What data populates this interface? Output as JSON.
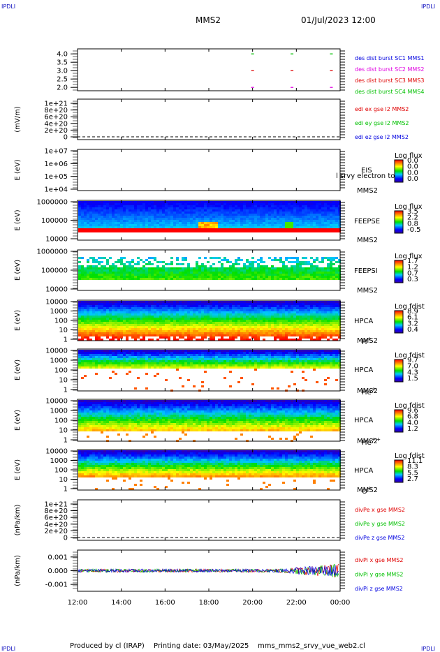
{
  "header": {
    "corner_tl": "IPDLI",
    "corner_tr": "IPDLI",
    "corner_bl": "IPDLI",
    "corner_br": "IPDLI",
    "spacecraft": "MMS2",
    "datetime": "01/Jul/2023 12:00"
  },
  "footer": {
    "produced": "Produced by cl (IRAP)",
    "printing": "Printing date: 03/May/2025",
    "script": "mms_mms2_srvy_vue_web2.cl"
  },
  "colors": {
    "black": "#000000",
    "red": "#e00000",
    "green": "#00c000",
    "blue": "#0000e0",
    "magenta": "#e000e0"
  },
  "chart_data": [
    {
      "type": "scatter",
      "panel": "des dist burst",
      "ylim": [
        1.8,
        4.3
      ],
      "yticks": [
        "4.0",
        "3.5",
        "3.0",
        "2.5",
        "2.0"
      ],
      "series": [
        {
          "name": "des dist burst SC1 MMS1",
          "color": "#0000e0",
          "x": [],
          "y": []
        },
        {
          "name": "des dist burst SC2 MMS2",
          "color": "#e000e0",
          "x": [
            20.0,
            21.8,
            23.6
          ],
          "y": [
            2.0,
            2.0,
            2.0
          ]
        },
        {
          "name": "des dist burst SC3 MMS3",
          "color": "#e00000",
          "x": [
            20.0,
            21.8,
            23.6
          ],
          "y": [
            3.0,
            3.0,
            3.0
          ]
        },
        {
          "name": "des dist burst SC4 MMS4",
          "color": "#00c000",
          "x": [
            20.0,
            21.8,
            23.6
          ],
          "y": [
            4.0,
            4.0,
            4.0
          ]
        }
      ]
    },
    {
      "type": "line",
      "panel": "edi e gse",
      "ylabel": "(mV/m)",
      "yticks": [
        "1e+21",
        "8e+20",
        "6e+20",
        "4e+20",
        "2e+20",
        "0"
      ],
      "series": [
        {
          "name": "edi ex gse l2 MMS2",
          "color": "#e00000"
        },
        {
          "name": "edi ey gse l2 MMS2",
          "color": "#00c000"
        },
        {
          "name": "edi ez gse l2 MMS2",
          "color": "#0000e0"
        }
      ]
    },
    {
      "type": "heatmap",
      "panel": "EIS",
      "ylabel": "E (eV)",
      "yticks": [
        "1e+07",
        "1e+06",
        "1e+05",
        "1e+04"
      ],
      "labels": [
        "EIS",
        "MMS2"
      ],
      "overlay_text": "l srvy electron to",
      "colorbar": {
        "title": "Log flux",
        "ticks": [
          "0.0",
          "0.0",
          "0.0",
          "0.0"
        ]
      },
      "empty": true
    },
    {
      "type": "heatmap",
      "panel": "FEEPS electron",
      "ylabel": "E (eV)",
      "yticks": [
        "1000000",
        "100000",
        "10000"
      ],
      "labels": [
        "FEEPSE",
        "MMS2"
      ],
      "colorbar": {
        "title": "Log flux",
        "ticks": [
          "3.5",
          "2.2",
          "0.8",
          "-0.5"
        ]
      }
    },
    {
      "type": "heatmap",
      "panel": "FEEPS ion",
      "ylabel": "E (eV)",
      "yticks": [
        "1000000",
        "100000",
        "10000"
      ],
      "labels": [
        "FEEPSI",
        "MMS2"
      ],
      "colorbar": {
        "title": "Log flux",
        "ticks": [
          "1.7",
          "1.2",
          "0.7",
          "0.3"
        ]
      }
    },
    {
      "type": "heatmap",
      "panel": "HPCA H+",
      "ylabel": "E (eV)",
      "yticks": [
        "10000",
        "1000",
        "100",
        "10",
        "1"
      ],
      "labels": [
        "HPCA",
        "MMS2"
      ],
      "species": {
        "base": "H",
        "sup": "+"
      },
      "colorbar": {
        "title": "Log fdist",
        "ticks": [
          "8.9",
          "6.1",
          "3.2",
          "0.4"
        ]
      }
    },
    {
      "type": "heatmap",
      "panel": "HPCA He+",
      "ylabel": "E (eV)",
      "yticks": [
        "10000",
        "1000",
        "100",
        "10",
        "1"
      ],
      "labels": [
        "HPCA",
        "MMS2"
      ],
      "species": {
        "base": "He",
        "sup": "+"
      },
      "colorbar": {
        "title": "Log fdist",
        "ticks": [
          "9.7",
          "7.0",
          "4.3",
          "1.5"
        ]
      }
    },
    {
      "type": "heatmap",
      "panel": "HPCA He++",
      "ylabel": "E (eV)",
      "yticks": [
        "10000",
        "1000",
        "100",
        "10",
        "1"
      ],
      "labels": [
        "HPCA",
        "MMS2"
      ],
      "species": {
        "base": "He",
        "sup": "++"
      },
      "colorbar": {
        "title": "Log fdist",
        "ticks": [
          "9.6",
          "6.8",
          "4.0",
          "1.2"
        ]
      }
    },
    {
      "type": "heatmap",
      "panel": "HPCA O+",
      "ylabel": "E (eV)",
      "yticks": [
        "10000",
        "1000",
        "100",
        "10",
        "1"
      ],
      "labels": [
        "HPCA",
        "MMS2"
      ],
      "species": {
        "base": "O",
        "sup": "+"
      },
      "colorbar": {
        "title": "Log fdist",
        "ticks": [
          "11.1",
          "8.3",
          "5.5",
          "2.7"
        ]
      }
    },
    {
      "type": "line",
      "panel": "divPe",
      "ylabel": "(nPa/km)",
      "yticks": [
        "1e+21",
        "8e+20",
        "6e+20",
        "4e+20",
        "2e+20",
        "0"
      ],
      "series": [
        {
          "name": "divPe x gse MMS2",
          "color": "#e00000"
        },
        {
          "name": "divPe y gse MMS2",
          "color": "#00c000"
        },
        {
          "name": "divPe z gse MMS2",
          "color": "#0000e0"
        }
      ]
    },
    {
      "type": "line",
      "panel": "divPi",
      "ylabel": "(nPa/km)",
      "ylim": [
        -0.0015,
        0.0015
      ],
      "yticks": [
        "0.001",
        "0.000",
        "-0.001"
      ],
      "series": [
        {
          "name": "divPi x gse MMS2",
          "color": "#e00000"
        },
        {
          "name": "divPi y gse MMS2",
          "color": "#00c000"
        },
        {
          "name": "divPi z gse MMS2",
          "color": "#0000e0"
        }
      ]
    }
  ],
  "xaxis": {
    "range_hours": [
      12,
      24
    ],
    "ticks": [
      "12:00",
      "14:00",
      "16:00",
      "18:00",
      "20:00",
      "22:00",
      "00:00"
    ]
  }
}
